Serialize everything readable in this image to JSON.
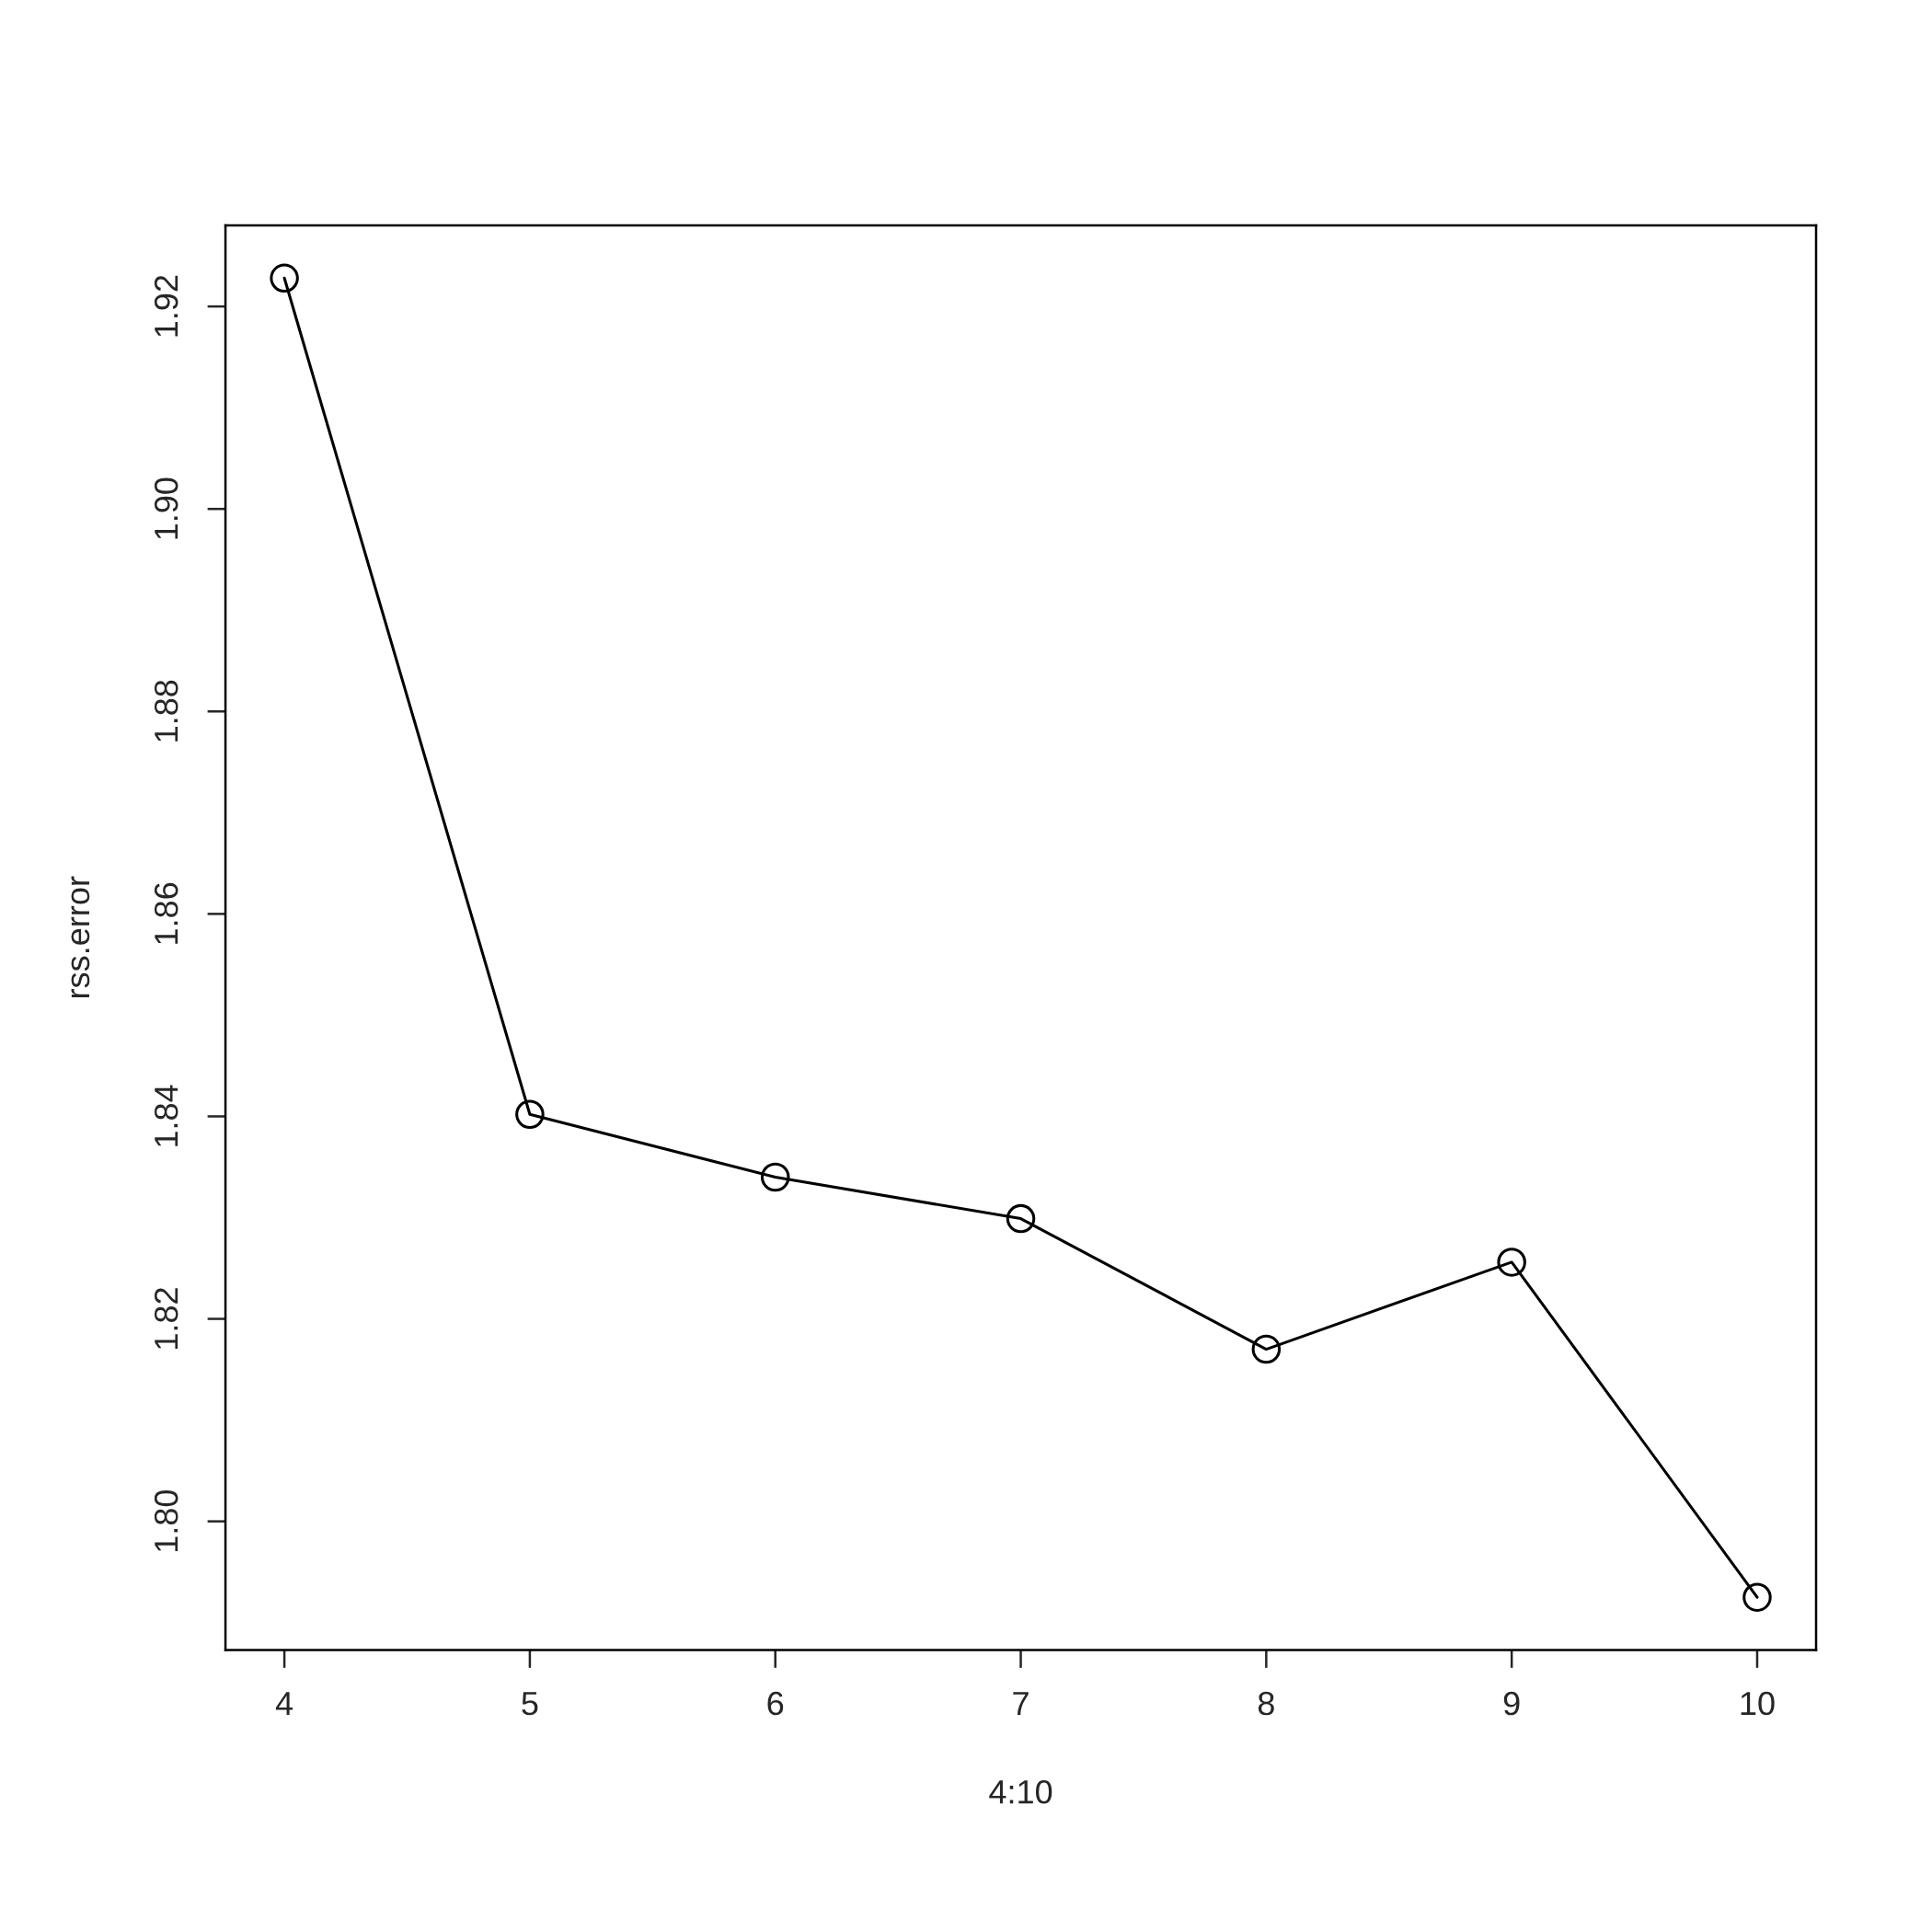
{
  "chart_data": {
    "type": "line",
    "xlabel": "4:10",
    "ylabel": "rss.error",
    "x": [
      4,
      5,
      6,
      7,
      8,
      9,
      10
    ],
    "series": [
      {
        "color": "#000000",
        "values": [
          1.9228,
          1.8402,
          1.834,
          1.8299,
          1.817,
          1.8256,
          1.7925
        ]
      }
    ],
    "xlim": [
      3.76,
      10.24
    ],
    "ylim": [
      1.7873,
      1.928
    ],
    "xticks": [
      4,
      5,
      6,
      7,
      8,
      9,
      10
    ],
    "yticks": [
      {
        "value": 1.8,
        "label": "1.80"
      },
      {
        "value": 1.82,
        "label": "1.82"
      },
      {
        "value": 1.84,
        "label": "1.84"
      },
      {
        "value": 1.86,
        "label": "1.86"
      },
      {
        "value": 1.88,
        "label": "1.88"
      },
      {
        "value": 1.9,
        "label": "1.90"
      },
      {
        "value": 1.92,
        "label": "1.92"
      }
    ],
    "grid": false,
    "legend": false,
    "marker": "circle",
    "line_style": "solid"
  }
}
